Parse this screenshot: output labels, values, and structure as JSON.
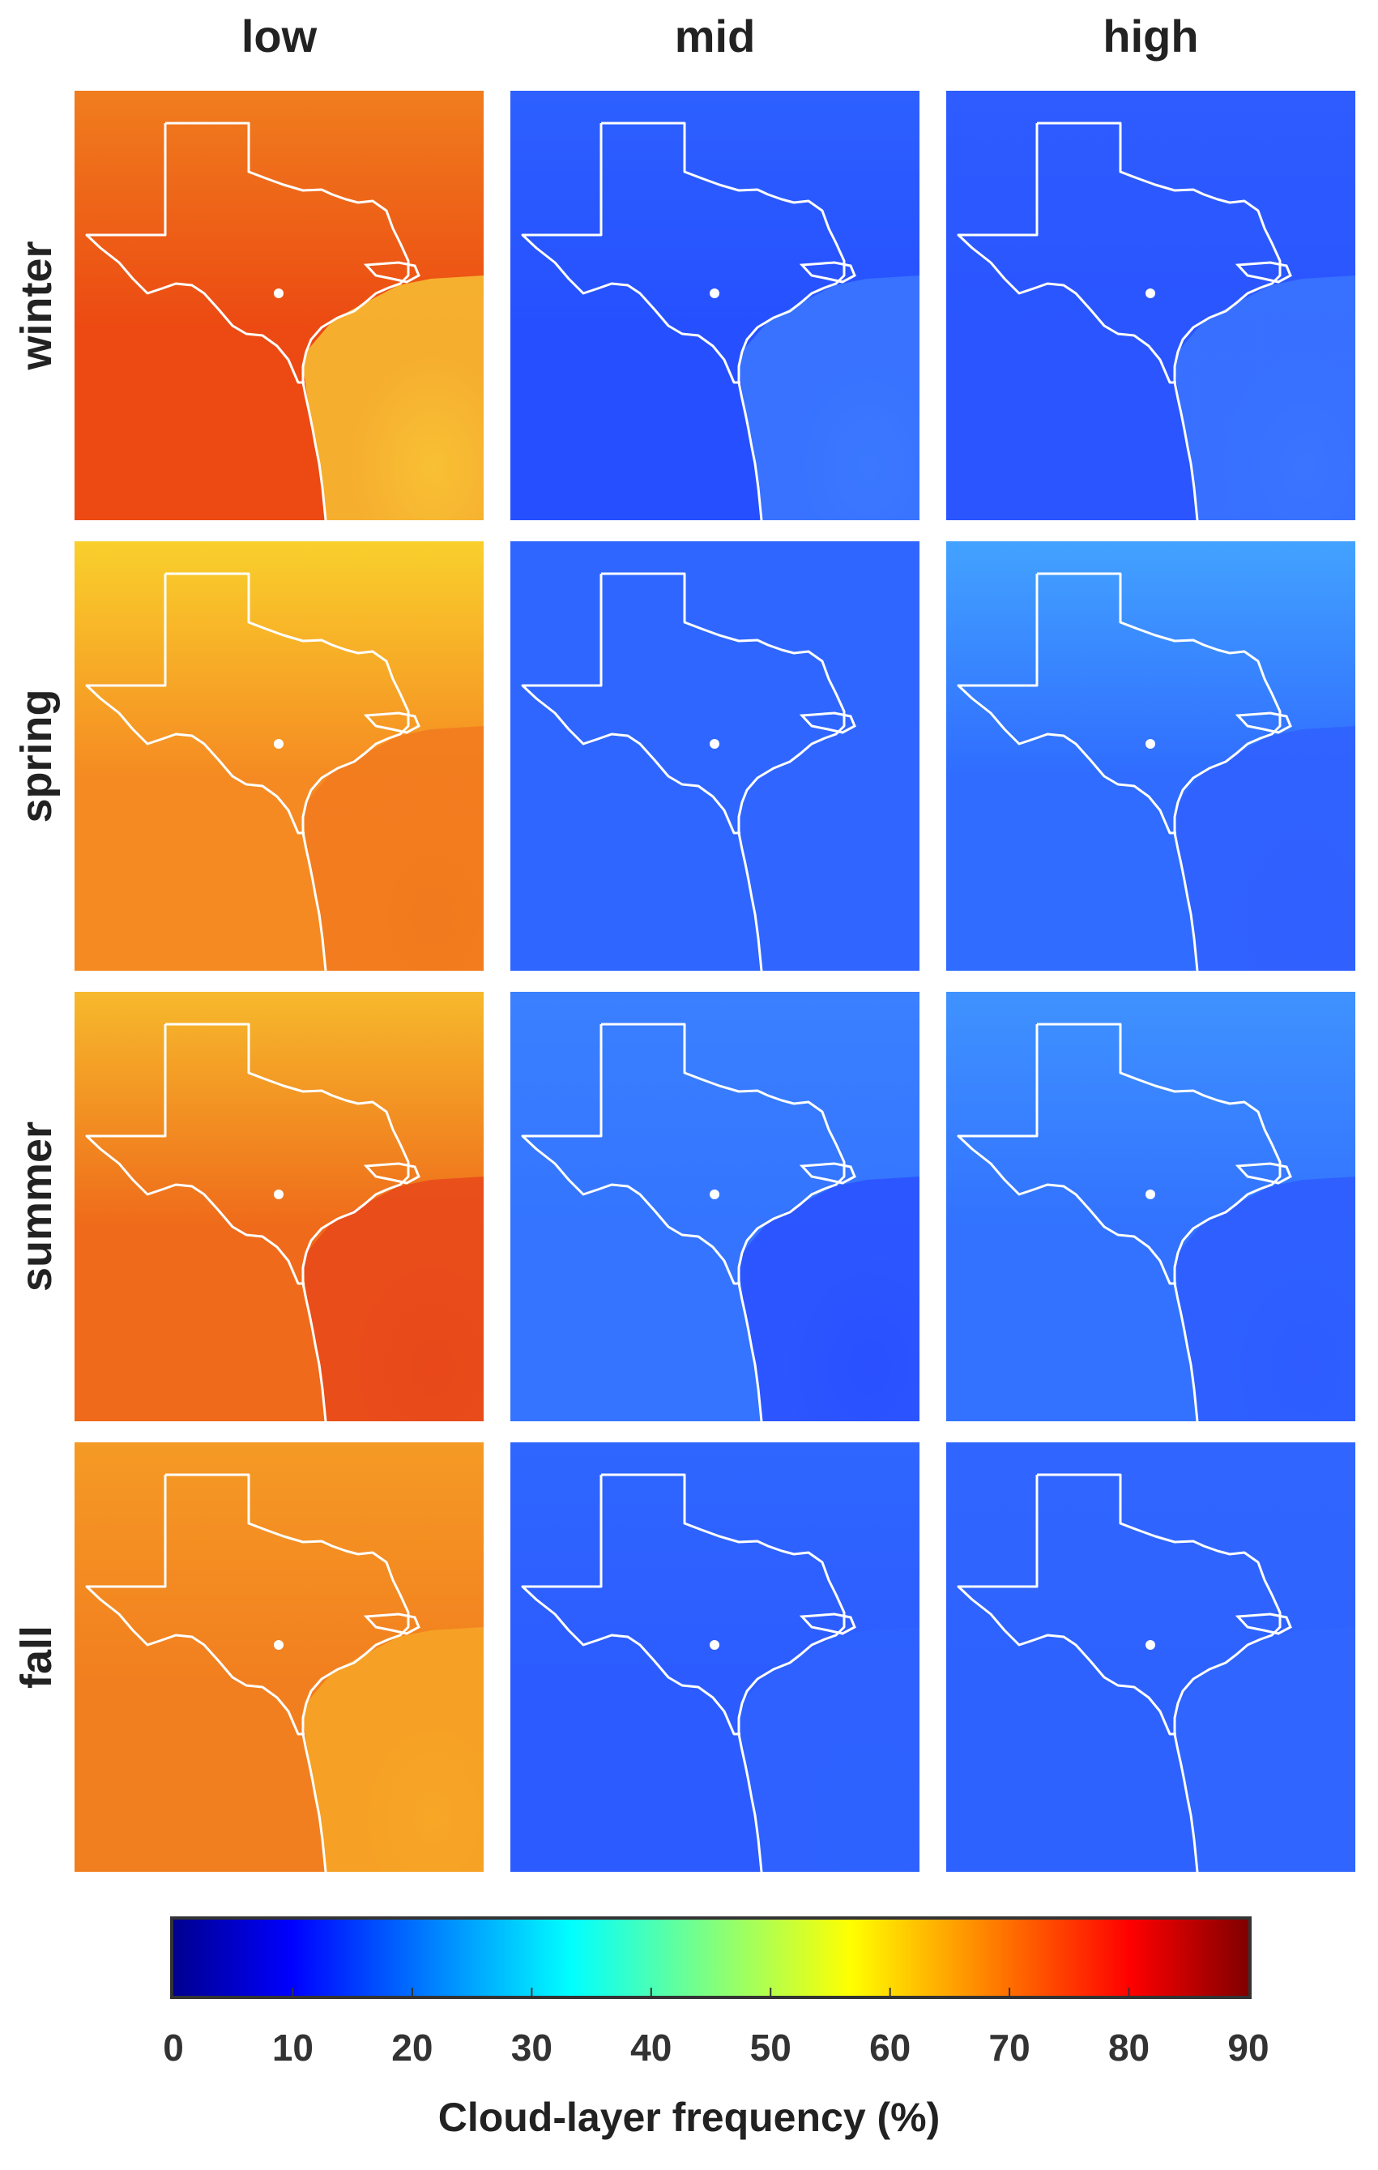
{
  "columns": [
    {
      "key": "low",
      "label": "low"
    },
    {
      "key": "mid",
      "label": "mid"
    },
    {
      "key": "high",
      "label": "high"
    }
  ],
  "rows": [
    {
      "key": "winter",
      "label": "winter"
    },
    {
      "key": "spring",
      "label": "spring"
    },
    {
      "key": "summer",
      "label": "summer"
    },
    {
      "key": "fall",
      "label": "fall"
    }
  ],
  "panels": {
    "winter": {
      "low": {
        "land": "#ec4a12",
        "north": "#f07d1e",
        "ocean": "#f8c034"
      },
      "mid": {
        "land": "#2650ff",
        "north": "#2d60ff",
        "ocean": "#3b78ff"
      },
      "high": {
        "land": "#2a55ff",
        "north": "#2e5cff",
        "ocean": "#3a74ff"
      }
    },
    "spring": {
      "low": {
        "land": "#f58a22",
        "north": "#f9d02c",
        "ocean": "#f27a1e"
      },
      "mid": {
        "land": "#2f66ff",
        "north": "#2f66ff",
        "ocean": "#3066ff"
      },
      "high": {
        "land": "#2f6cff",
        "north": "#43a2ff",
        "ocean": "#3060ff"
      }
    },
    "summer": {
      "low": {
        "land": "#ef6a1a",
        "north": "#f6b92c",
        "ocean": "#e8481a"
      },
      "mid": {
        "land": "#3474ff",
        "north": "#3a80ff",
        "ocean": "#2a50ff"
      },
      "high": {
        "land": "#3272ff",
        "north": "#3f92ff",
        "ocean": "#2e5cff"
      }
    },
    "fall": {
      "low": {
        "land": "#f27f1f",
        "north": "#f59a25",
        "ocean": "#f7a626"
      },
      "mid": {
        "land": "#2c5cff",
        "north": "#2f66ff",
        "ocean": "#2e62ff"
      },
      "high": {
        "land": "#2e62ff",
        "north": "#3066ff",
        "ocean": "#3066ff"
      }
    }
  },
  "colorbar": {
    "title": "Cloud-layer frequency (%)",
    "range": [
      0,
      90
    ],
    "ticks": [
      "0",
      "10",
      "20",
      "30",
      "40",
      "50",
      "60",
      "70",
      "80",
      "90"
    ],
    "colormap": "jet",
    "stops": [
      "#00008f",
      "#0000ff",
      "#00ffff",
      "#ffff00",
      "#ff0000",
      "#800000"
    ]
  },
  "styles": {
    "outline_color": "#ffffff",
    "marker_color": "#ffffff"
  }
}
